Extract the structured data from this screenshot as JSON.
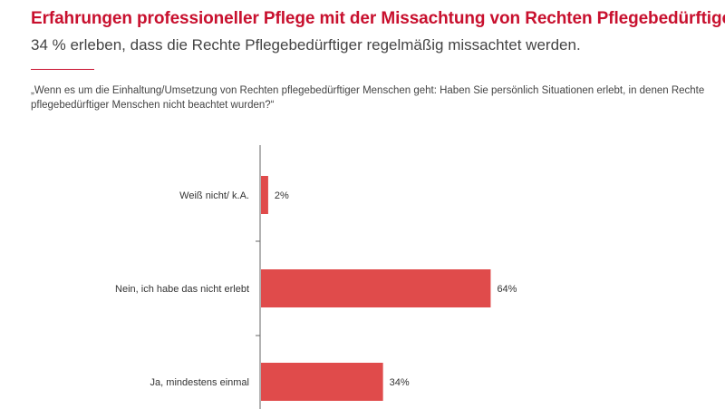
{
  "header": {
    "title": "Erfahrungen professioneller Pflege mit der Missachtung von Rechten Pflegebedürftiger",
    "subtitle": "34 % erleben, dass die Rechte Pflegebedürftiger regelmäßig missachtet werden.",
    "question": "„Wenn es um die Einhaltung/Umsetzung von Rechten pflegebedürftiger Menschen geht: Haben Sie persönlich Situationen erlebt, in denen Rechte pflegebedürftiger Menschen nicht beachtet wurden?“"
  },
  "colors": {
    "accent": "#c8102e",
    "bar": "#e04b4b",
    "axis": "#666666"
  },
  "chart_data": {
    "type": "bar",
    "orientation": "horizontal",
    "categories": [
      "Weiß nicht/ k.A.",
      "Nein, ich habe das nicht erlebt",
      "Ja, mindestens einmal"
    ],
    "values": [
      2,
      64,
      34
    ],
    "data_labels": [
      "2%",
      "64%",
      "34%"
    ],
    "unit": "%",
    "xlim": [
      0,
      100
    ],
    "grid": false,
    "legend": "none"
  }
}
